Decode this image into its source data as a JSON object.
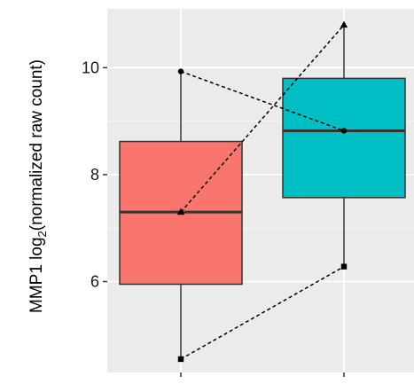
{
  "chart_data": {
    "type": "box",
    "title": "",
    "xlabel": "",
    "ylabel_main": "MMP1 log",
    "ylabel_sub": "2",
    "ylabel_rest": "(normalized raw count)",
    "ylim": [
      4.3,
      11.1
    ],
    "yticks": [
      6,
      8,
      10
    ],
    "ytick_labels": [
      "6",
      "8",
      "10"
    ],
    "grid": true,
    "panel_background": "#EBEBEB",
    "boxes": [
      {
        "group": 1,
        "fill": "#F8766D",
        "q1": 5.95,
        "median": 7.3,
        "q3": 8.62,
        "whisker_low": 4.55,
        "whisker_high": 9.93
      },
      {
        "group": 2,
        "fill": "#00BFC4",
        "q1": 7.57,
        "median": 8.82,
        "q3": 9.8,
        "whisker_low": 6.28,
        "whisker_high": 10.8
      }
    ],
    "paired_lines": [
      {
        "marker": "circle",
        "values": [
          9.93,
          8.82
        ]
      },
      {
        "marker": "triangle",
        "values": [
          7.3,
          10.8
        ]
      },
      {
        "marker": "square",
        "values": [
          4.55,
          6.28
        ]
      }
    ]
  }
}
